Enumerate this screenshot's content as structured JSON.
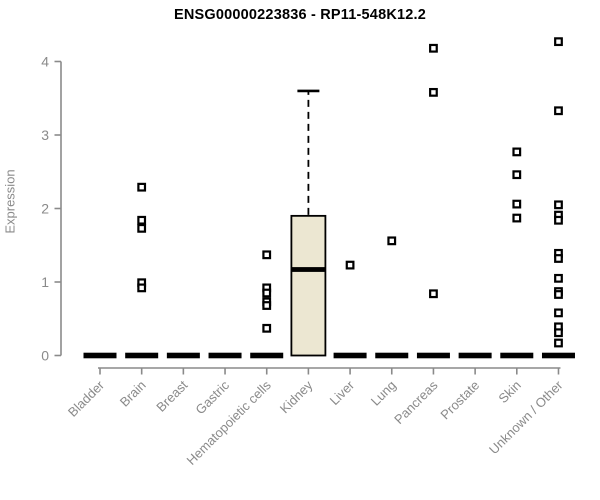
{
  "chart_data": {
    "type": "boxplot",
    "title": "ENSG00000223836 - RP11-548K12.2",
    "xlabel": "",
    "ylabel": "Expression",
    "ylim": [
      0,
      4.3
    ],
    "yticks": [
      0,
      1,
      2,
      3,
      4
    ],
    "grid": false,
    "legend": "none",
    "axis_color": "#8a8a8a",
    "label_color": "#8a8a8a",
    "box_fill_color": "#ece7d2",
    "box_stroke_color": "#000000",
    "outlier_color": "#000000",
    "categories": [
      "Bladder",
      "Brain",
      "Breast",
      "Gastric",
      "Hematopoietic cells",
      "Kidney",
      "Liver",
      "Lung",
      "Pancreas",
      "Prostate",
      "Skin",
      "Unknown / Other"
    ],
    "series": [
      {
        "category": "Bladder",
        "q1": 0,
        "median": 0,
        "q3": 0,
        "whisker_low": 0,
        "whisker_high": 0,
        "outliers": []
      },
      {
        "category": "Brain",
        "q1": 0,
        "median": 0,
        "q3": 0,
        "whisker_low": 0,
        "whisker_high": 0,
        "outliers": [
          2.29,
          1.84,
          1.73,
          0.99,
          0.92
        ]
      },
      {
        "category": "Breast",
        "q1": 0,
        "median": 0,
        "q3": 0,
        "whisker_low": 0,
        "whisker_high": 0,
        "outliers": []
      },
      {
        "category": "Gastric",
        "q1": 0,
        "median": 0,
        "q3": 0,
        "whisker_low": 0,
        "whisker_high": 0,
        "outliers": []
      },
      {
        "category": "Hematopoietic cells",
        "q1": 0,
        "median": 0,
        "q3": 0,
        "whisker_low": 0,
        "whisker_high": 0,
        "outliers": [
          1.37,
          0.92,
          0.85,
          0.73,
          0.68,
          0.37
        ]
      },
      {
        "category": "Kidney",
        "q1": 0,
        "median": 1.17,
        "q3": 1.9,
        "whisker_low": 0,
        "whisker_high": 3.6,
        "outliers": []
      },
      {
        "category": "Liver",
        "q1": 0,
        "median": 0,
        "q3": 0,
        "whisker_low": 0,
        "whisker_high": 0,
        "outliers": [
          1.23
        ]
      },
      {
        "category": "Lung",
        "q1": 0,
        "median": 0,
        "q3": 0,
        "whisker_low": 0,
        "whisker_high": 0,
        "outliers": [
          1.56
        ]
      },
      {
        "category": "Pancreas",
        "q1": 0,
        "median": 0,
        "q3": 0,
        "whisker_low": 0,
        "whisker_high": 0,
        "outliers": [
          4.18,
          3.58,
          0.84
        ]
      },
      {
        "category": "Prostate",
        "q1": 0,
        "median": 0,
        "q3": 0,
        "whisker_low": 0,
        "whisker_high": 0,
        "outliers": []
      },
      {
        "category": "Skin",
        "q1": 0,
        "median": 0,
        "q3": 0,
        "whisker_low": 0,
        "whisker_high": 0,
        "outliers": [
          2.77,
          2.46,
          2.06,
          1.87
        ]
      },
      {
        "category": "Unknown / Other",
        "q1": 0,
        "median": 0,
        "q3": 0,
        "whisker_low": 0,
        "whisker_high": 0,
        "outliers": [
          4.27,
          3.33,
          2.05,
          1.91,
          1.84,
          1.39,
          1.32,
          1.05,
          0.87,
          0.83,
          0.58,
          0.39,
          0.31,
          0.17
        ]
      }
    ]
  }
}
